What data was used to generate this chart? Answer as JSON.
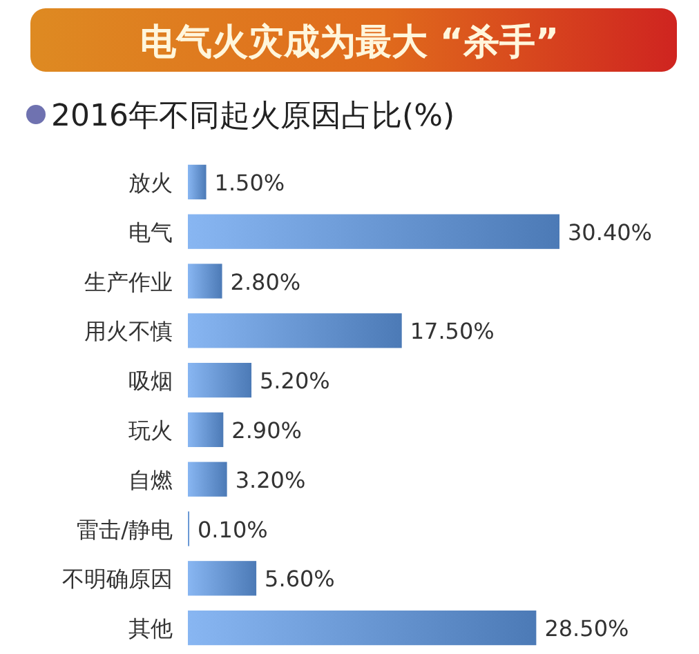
{
  "chart_data": {
    "type": "bar",
    "orientation": "horizontal",
    "title": "电气火灾成为最大 “杀手”",
    "subtitle": "2016年不同起火原因占比(%)",
    "categories": [
      "放火",
      "电气",
      "生产作业",
      "用火不慎",
      "吸烟",
      "玩火",
      "自燃",
      "雷击/静电",
      "不明确原因",
      "其他"
    ],
    "values": [
      1.5,
      30.4,
      2.8,
      17.5,
      5.2,
      2.9,
      3.2,
      0.1,
      5.6,
      28.5
    ],
    "value_labels": [
      "1.50%",
      "30.40%",
      "2.80%",
      "17.50%",
      "5.20%",
      "2.90%",
      "3.20%",
      "0.10%",
      "5.60%",
      "28.50%"
    ],
    "color": "#6a98d4"
  }
}
